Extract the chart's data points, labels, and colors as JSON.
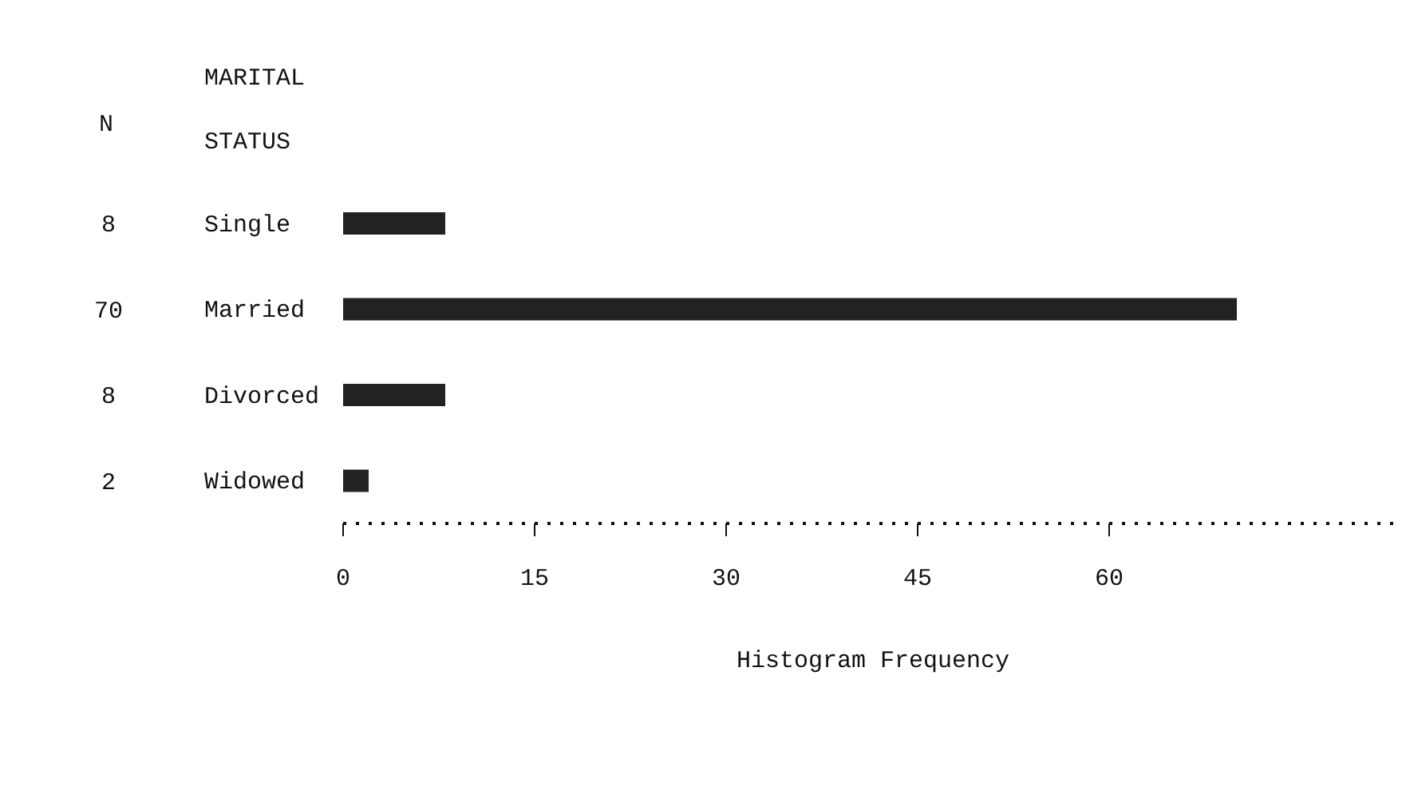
{
  "chart_data": {
    "type": "bar",
    "orientation": "horizontal",
    "ylabel": "MARITAL STATUS",
    "xlabel": "Histogram Frequency",
    "annotations": [
      "N"
    ],
    "categories": [
      "Single",
      "Married",
      "Divorced",
      "Widowed"
    ],
    "values": [
      8,
      70,
      8,
      2
    ],
    "color": "#222222",
    "data_labels": true,
    "xlim": [
      0,
      83
    ],
    "xticks": [
      0,
      15,
      30,
      45,
      60
    ],
    "grid": false,
    "legend": false
  }
}
